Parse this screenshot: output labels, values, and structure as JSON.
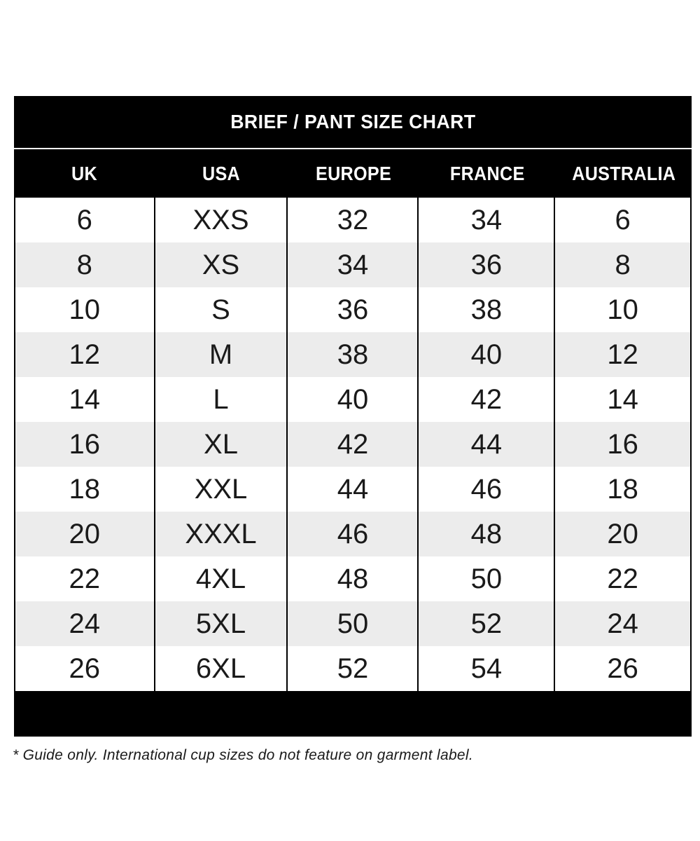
{
  "page": {
    "title": "BRIEF / PANT SIZE CHART",
    "footnote": "* Guide only. International cup sizes do not feature on garment label."
  },
  "table": {
    "columns": [
      "UK",
      "USA",
      "EUROPE",
      "FRANCE",
      "AUSTRALIA"
    ],
    "rows": [
      [
        "6",
        "XXS",
        "32",
        "34",
        "6"
      ],
      [
        "8",
        "XS",
        "34",
        "36",
        "8"
      ],
      [
        "10",
        "S",
        "36",
        "38",
        "10"
      ],
      [
        "12",
        "M",
        "38",
        "40",
        "12"
      ],
      [
        "14",
        "L",
        "40",
        "42",
        "14"
      ],
      [
        "16",
        "XL",
        "42",
        "44",
        "16"
      ],
      [
        "18",
        "XXL",
        "44",
        "46",
        "18"
      ],
      [
        "20",
        "XXXL",
        "46",
        "48",
        "20"
      ],
      [
        "22",
        "4XL",
        "48",
        "50",
        "22"
      ],
      [
        "24",
        "5XL",
        "50",
        "52",
        "24"
      ],
      [
        "26",
        "6XL",
        "52",
        "54",
        "26"
      ]
    ]
  },
  "colors": {
    "bar_background": "#000000",
    "header_text": "#ffffff",
    "row_alternate": "#ececec",
    "body_text": "#1a1a1a",
    "divider": "#000000"
  },
  "chart_data": {
    "type": "table",
    "title": "BRIEF / PANT SIZE CHART",
    "columns": [
      "UK",
      "USA",
      "EUROPE",
      "FRANCE",
      "AUSTRALIA"
    ],
    "rows": [
      [
        6,
        "XXS",
        32,
        34,
        6
      ],
      [
        8,
        "XS",
        34,
        36,
        8
      ],
      [
        10,
        "S",
        36,
        38,
        10
      ],
      [
        12,
        "M",
        38,
        40,
        12
      ],
      [
        14,
        "L",
        40,
        42,
        14
      ],
      [
        16,
        "XL",
        42,
        44,
        16
      ],
      [
        18,
        "XXL",
        44,
        46,
        18
      ],
      [
        20,
        "XXXL",
        46,
        48,
        20
      ],
      [
        22,
        "4XL",
        48,
        50,
        22
      ],
      [
        24,
        "5XL",
        50,
        52,
        24
      ],
      [
        26,
        "6XL",
        52,
        54,
        26
      ]
    ],
    "footnote": "* Guide only. International cup sizes do not feature on garment label.",
    "layout": {
      "striped_rows": true,
      "stripe_start": "second_row",
      "column_dividers": true,
      "header_style": "black-bar-white-text"
    }
  }
}
